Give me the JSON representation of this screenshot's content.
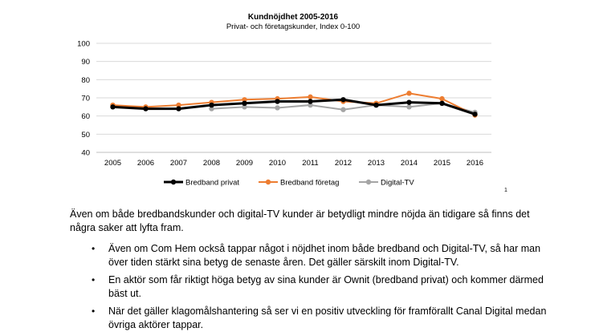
{
  "chart_data": {
    "type": "line",
    "title": "Kundnöjdhet 2005-2016",
    "subtitle": "Privat- och företagskunder, Index 0-100",
    "xlabel": "",
    "ylabel": "",
    "ylim": [
      40,
      100
    ],
    "yticks": [
      40,
      50,
      60,
      70,
      80,
      90,
      100
    ],
    "grid": true,
    "legend_position": "bottom",
    "x": [
      "2005",
      "2006",
      "2007",
      "2008",
      "2009",
      "2010",
      "2011",
      "2012",
      "2013",
      "2014",
      "2015",
      "2016"
    ],
    "series": [
      {
        "name": "Bredband privat",
        "color": "#000000",
        "values": [
          65,
          64,
          64,
          66,
          67,
          68,
          68,
          69,
          66,
          67.5,
          67,
          61
        ]
      },
      {
        "name": "Bredband företag",
        "color": "#ED7D31",
        "values": [
          66,
          65,
          66,
          67.5,
          69,
          69.5,
          70.5,
          68,
          67,
          72.5,
          69.5,
          60.5
        ]
      },
      {
        "name": "Digital-TV",
        "color": "#A5A5A5",
        "values": [
          null,
          null,
          null,
          64,
          65,
          64.5,
          66,
          63.5,
          66,
          65,
          67,
          62
        ]
      }
    ]
  },
  "footnote": "1",
  "intro": "Även om både bredbandskunder och digital-TV kunder är betydligt mindre nöjda än tidigare så finns det några saker att lyfta fram.",
  "bullets": [
    "Även om Com Hem också tappar något i nöjdhet inom både bredband och Digital-TV, så har man över tiden stärkt sina betyg de senaste åren. Det gäller särskilt inom Digital-TV.",
    "En aktör som får riktigt höga betyg av sina kunder är Ownit (bredband privat) och kommer därmed bäst ut.",
    "När det gäller klagomålshantering så ser vi en positiv utveckling för framförallt Canal Digital medan övriga aktörer tappar."
  ]
}
